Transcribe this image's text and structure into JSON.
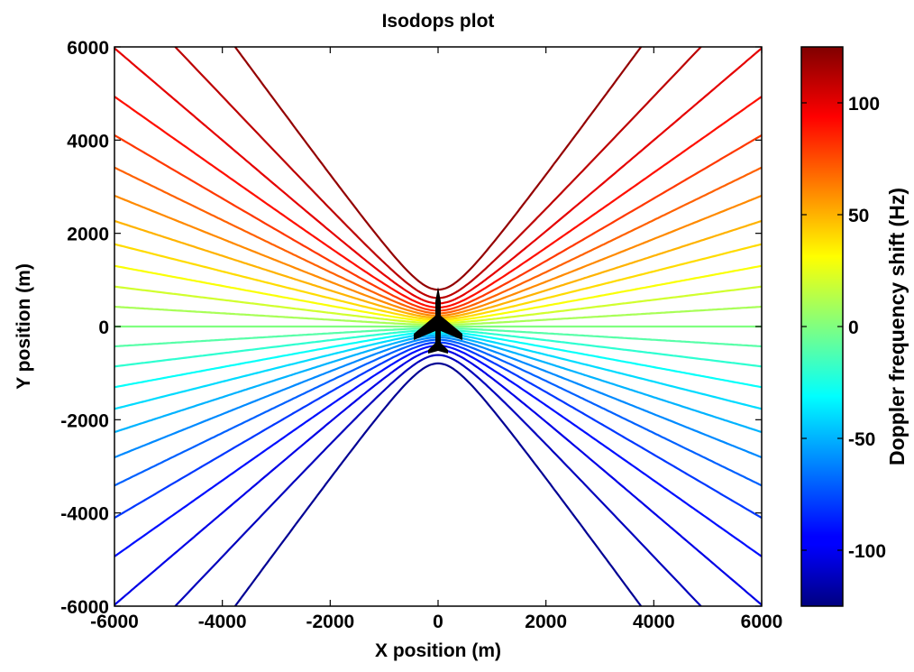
{
  "chart_data": {
    "type": "contour",
    "title": "Isodops plot",
    "xlabel": "X position (m)",
    "ylabel": "Y position (m)",
    "xlim": [
      -6000,
      6000
    ],
    "ylim": [
      -6000,
      6000
    ],
    "xticks": [
      -6000,
      -4000,
      -2000,
      0,
      2000,
      4000,
      6000
    ],
    "yticks": [
      -6000,
      -4000,
      -2000,
      0,
      2000,
      4000,
      6000
    ],
    "grid": false,
    "colormap": "jet",
    "colorbar": {
      "label": "Doppler frequency shift (Hz)",
      "range": [
        -125,
        125
      ],
      "ticks": [
        -100,
        -50,
        0,
        50,
        100
      ],
      "position": "right"
    },
    "contour_levels_hz": [
      -120,
      -110,
      -100,
      -90,
      -80,
      -70,
      -60,
      -50,
      -40,
      -30,
      -20,
      -10,
      0,
      10,
      20,
      30,
      40,
      50,
      60,
      70,
      80,
      90,
      100,
      110,
      120
    ],
    "marker": {
      "icon": "aircraft-icon",
      "x": 0,
      "y": 0,
      "heading": "north"
    }
  }
}
